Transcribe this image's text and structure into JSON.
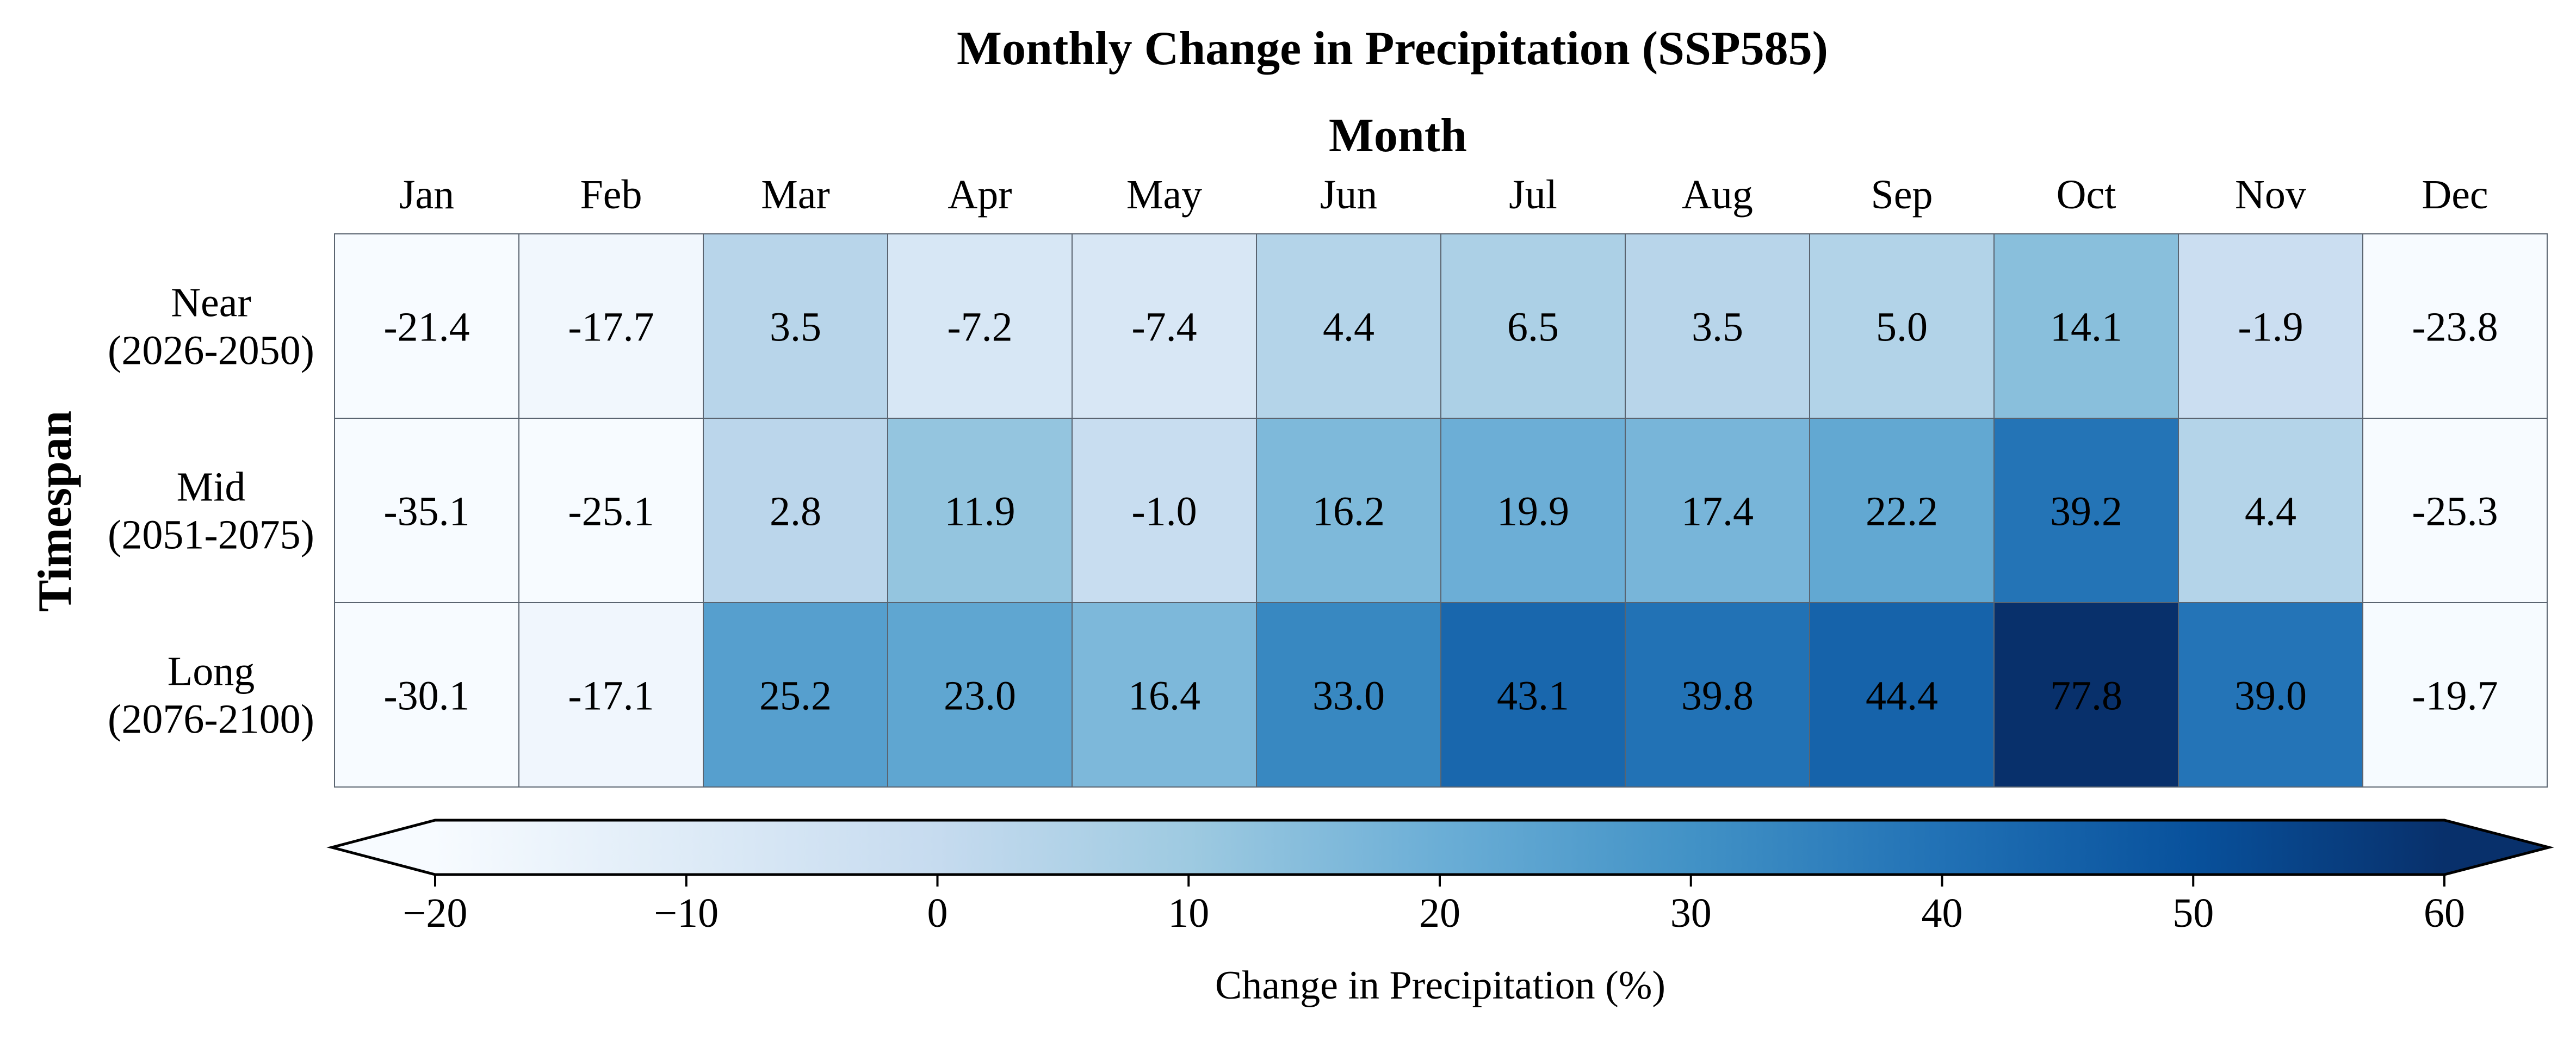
{
  "chart_data": {
    "type": "heatmap",
    "title": "Monthly Change in Precipitation (SSP585)",
    "xlabel": "Month",
    "ylabel": "Timespan",
    "x_categories": [
      "Jan",
      "Feb",
      "Mar",
      "Apr",
      "May",
      "Jun",
      "Jul",
      "Aug",
      "Sep",
      "Oct",
      "Nov",
      "Dec"
    ],
    "y_categories": [
      {
        "name": "Near",
        "range": "(2026-2050)"
      },
      {
        "name": "Mid",
        "range": "(2051-2075)"
      },
      {
        "name": "Long",
        "range": "(2076-2100)"
      }
    ],
    "values": [
      [
        -21.4,
        -17.7,
        3.5,
        -7.2,
        -7.4,
        4.4,
        6.5,
        3.5,
        5.0,
        14.1,
        -1.9,
        -23.8
      ],
      [
        -35.1,
        -25.1,
        2.8,
        11.9,
        -1.0,
        16.2,
        19.9,
        17.4,
        22.2,
        39.2,
        4.4,
        -25.3
      ],
      [
        -30.1,
        -17.1,
        25.2,
        23.0,
        16.4,
        33.0,
        43.1,
        39.8,
        44.4,
        77.8,
        39.0,
        -19.7
      ]
    ],
    "value_format": "one decimal",
    "colormap": "Blues",
    "vmin": -20,
    "vmax": 60,
    "colorbar": {
      "label": "Change in Precipitation (%)",
      "ticks": [
        -20,
        -10,
        0,
        10,
        20,
        30,
        40,
        50,
        60
      ],
      "tick_labels": [
        "−20",
        "−10",
        "0",
        "10",
        "20",
        "30",
        "40",
        "50",
        "60"
      ],
      "extend": "both",
      "orientation": "horizontal",
      "placement": "bottom"
    },
    "x_axis_position": "top",
    "grid": false
  }
}
